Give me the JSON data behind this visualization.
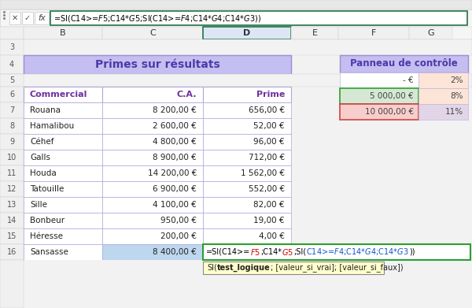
{
  "formula_bar": "=SI(C14>=$F$5;C14*$G$5;SI(C14>=$F$4;C14*$G$4;C14*$G$3))",
  "col_letters": [
    "B",
    "C",
    "D",
    "E",
    "F",
    "G"
  ],
  "title_main": "Primes sur résultats",
  "title_panel": "Panneau de contrôle",
  "headers": [
    "Commercial",
    "C.A.",
    "Prime"
  ],
  "data": [
    [
      "Rouana",
      "8 200,00 €",
      "656,00 €"
    ],
    [
      "Hamalibou",
      "2 600,00 €",
      "52,00 €"
    ],
    [
      "Céhef",
      "4 800,00 €",
      "96,00 €"
    ],
    [
      "Galls",
      "8 900,00 €",
      "712,00 €"
    ],
    [
      "Houda",
      "14 200,00 €",
      "1 562,00 €"
    ],
    [
      "Tatouille",
      "6 900,00 €",
      "552,00 €"
    ],
    [
      "Sille",
      "4 100,00 €",
      "82,00 €"
    ],
    [
      "Bonbeur",
      "950,00 €",
      "19,00 €"
    ],
    [
      "Héresse",
      "200,00 €",
      "4,00 €"
    ],
    [
      "Sansasse",
      "8 400,00 €",
      ""
    ]
  ],
  "panel_rows": [
    [
      "- €",
      "2%"
    ],
    [
      "5 000,00 €",
      "8%"
    ],
    [
      "10 000,00 €",
      "11%"
    ]
  ],
  "panel_row_colors_left": [
    "#ffffff",
    "#d5e8d4",
    "#f8cecc"
  ],
  "panel_row_colors_right": [
    "#fce4d6",
    "#fce4d6",
    "#e1d5e7"
  ],
  "formula_parts": [
    {
      "text": "=SI(C14>=",
      "color": "#000000"
    },
    {
      "text": "$F$5",
      "color": "#cc0000"
    },
    {
      "text": ";C14*",
      "color": "#000000"
    },
    {
      "text": "$G$5",
      "color": "#cc0000"
    },
    {
      "text": ";SI(",
      "color": "#000000"
    },
    {
      "text": "C14>=$F$4;C14*$G$4;C14*$G$3",
      "color": "#1155cc"
    },
    {
      "text": "))",
      "color": "#000000"
    }
  ],
  "bg_color": "#f2f2f2",
  "title_bg": "#c5bef0",
  "title_text_color": "#4a3aaa",
  "panel_title_bg": "#c5bef0",
  "panel_title_color": "#4a3aaa",
  "header_text_color": "#7030a0",
  "cell_border": "#b0a8d8",
  "last_ca_bg": "#bdd7ee",
  "formula_green_border": "#2d9e2d",
  "tooltip_bg": "#ffffcc",
  "tooltip_border": "#888888"
}
